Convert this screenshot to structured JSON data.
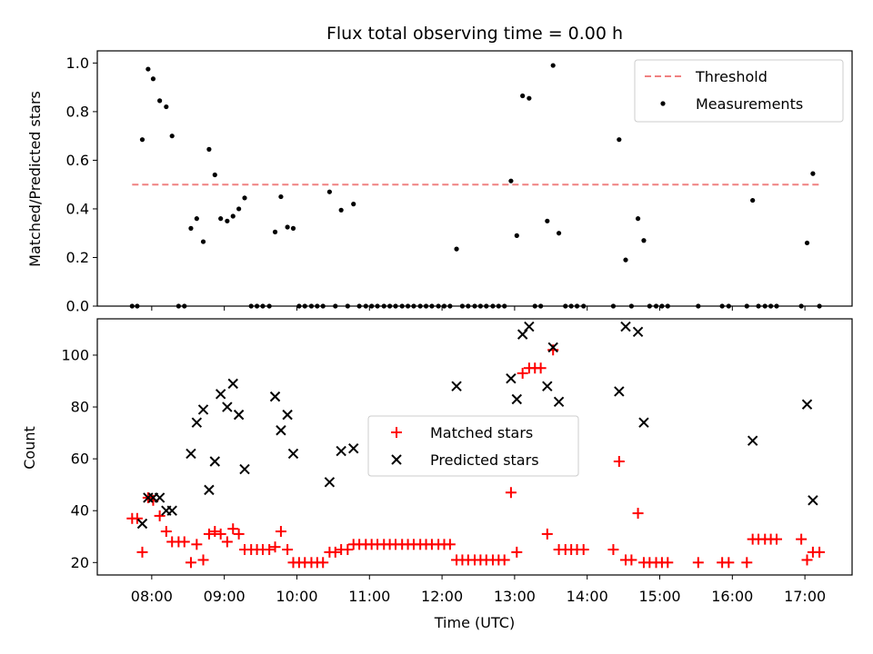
{
  "title": "Flux total observing time = 0.00 h",
  "colors": {
    "threshold": "#f08080",
    "measurement": "#000000",
    "matched": "#ff0000",
    "predicted": "#000000"
  },
  "chart_data": [
    {
      "type": "scatter",
      "xlabel": "",
      "ylabel": "Matched/Predicted stars",
      "ylim": [
        0,
        1.05
      ],
      "yticks": [
        0.0,
        0.2,
        0.4,
        0.6,
        0.8,
        1.0
      ],
      "ytick_labels": [
        "0.0",
        "0.2",
        "0.4",
        "0.6",
        "0.8",
        "1.0"
      ],
      "legend_position": "upper right",
      "threshold": {
        "name": "Threshold",
        "value": 0.5,
        "x_start": 7.73,
        "x_end": 17.22
      },
      "series": [
        {
          "name": "Measurements",
          "points": [
            [
              7.73,
              0.0
            ],
            [
              7.8,
              0.0
            ],
            [
              7.87,
              0.685
            ],
            [
              7.95,
              0.975
            ],
            [
              8.02,
              0.935
            ],
            [
              8.11,
              0.845
            ],
            [
              8.2,
              0.82
            ],
            [
              8.28,
              0.7
            ],
            [
              8.37,
              0.0
            ],
            [
              8.45,
              0.0
            ],
            [
              8.54,
              0.32
            ],
            [
              8.62,
              0.36
            ],
            [
              8.71,
              0.265
            ],
            [
              8.79,
              0.645
            ],
            [
              8.87,
              0.54
            ],
            [
              8.95,
              0.36
            ],
            [
              9.04,
              0.35
            ],
            [
              9.12,
              0.37
            ],
            [
              9.2,
              0.4
            ],
            [
              9.28,
              0.445
            ],
            [
              9.37,
              0.0
            ],
            [
              9.45,
              0.0
            ],
            [
              9.53,
              0.0
            ],
            [
              9.62,
              0.0
            ],
            [
              9.7,
              0.305
            ],
            [
              9.78,
              0.45
            ],
            [
              9.87,
              0.325
            ],
            [
              9.95,
              0.32
            ],
            [
              10.03,
              0.0
            ],
            [
              10.11,
              0.0
            ],
            [
              10.2,
              0.0
            ],
            [
              10.28,
              0.0
            ],
            [
              10.36,
              0.0
            ],
            [
              10.45,
              0.47
            ],
            [
              10.53,
              0.0
            ],
            [
              10.61,
              0.395
            ],
            [
              10.7,
              0.0
            ],
            [
              10.78,
              0.42
            ],
            [
              10.86,
              0.0
            ],
            [
              10.95,
              0.0
            ],
            [
              11.03,
              0.0
            ],
            [
              11.11,
              0.0
            ],
            [
              11.2,
              0.0
            ],
            [
              11.28,
              0.0
            ],
            [
              11.36,
              0.0
            ],
            [
              11.45,
              0.0
            ],
            [
              11.53,
              0.0
            ],
            [
              11.61,
              0.0
            ],
            [
              11.7,
              0.0
            ],
            [
              11.78,
              0.0
            ],
            [
              11.86,
              0.0
            ],
            [
              11.95,
              0.0
            ],
            [
              12.03,
              0.0
            ],
            [
              12.11,
              0.0
            ],
            [
              12.2,
              0.235
            ],
            [
              12.28,
              0.0
            ],
            [
              12.36,
              0.0
            ],
            [
              12.45,
              0.0
            ],
            [
              12.53,
              0.0
            ],
            [
              12.61,
              0.0
            ],
            [
              12.7,
              0.0
            ],
            [
              12.78,
              0.0
            ],
            [
              12.86,
              0.0
            ],
            [
              12.95,
              0.515
            ],
            [
              13.03,
              0.29
            ],
            [
              13.11,
              0.865
            ],
            [
              13.2,
              0.855
            ],
            [
              13.28,
              0.0
            ],
            [
              13.36,
              0.0
            ],
            [
              13.45,
              0.35
            ],
            [
              13.53,
              0.99
            ],
            [
              13.61,
              0.3
            ],
            [
              13.7,
              0.0
            ],
            [
              13.78,
              0.0
            ],
            [
              13.86,
              0.0
            ],
            [
              13.95,
              0.0
            ],
            [
              14.36,
              0.0
            ],
            [
              14.44,
              0.685
            ],
            [
              14.53,
              0.19
            ],
            [
              14.61,
              0.0
            ],
            [
              14.7,
              0.36
            ],
            [
              14.78,
              0.27
            ],
            [
              14.86,
              0.0
            ],
            [
              14.95,
              0.0
            ],
            [
              15.03,
              0.0
            ],
            [
              15.11,
              0.0
            ],
            [
              15.53,
              0.0
            ],
            [
              15.86,
              0.0
            ],
            [
              15.95,
              0.0
            ],
            [
              16.2,
              0.0
            ],
            [
              16.28,
              0.435
            ],
            [
              16.36,
              0.0
            ],
            [
              16.45,
              0.0
            ],
            [
              16.53,
              0.0
            ],
            [
              16.61,
              0.0
            ],
            [
              16.95,
              0.0
            ],
            [
              17.03,
              0.26
            ],
            [
              17.11,
              0.545
            ],
            [
              17.2,
              0.0
            ]
          ]
        }
      ]
    },
    {
      "type": "scatter",
      "xlabel": "Time (UTC)",
      "ylabel": "Count",
      "xlim": [
        7.25,
        17.65
      ],
      "xticks": [
        8,
        9,
        10,
        11,
        12,
        13,
        14,
        15,
        16,
        17
      ],
      "xtick_labels": [
        "08:00",
        "09:00",
        "10:00",
        "11:00",
        "12:00",
        "13:00",
        "14:00",
        "15:00",
        "16:00",
        "17:00"
      ],
      "ylim": [
        15.2,
        114.0
      ],
      "yticks": [
        20,
        40,
        60,
        80,
        100
      ],
      "ytick_labels": [
        "20",
        "40",
        "60",
        "80",
        "100"
      ],
      "legend_position": "center",
      "series": [
        {
          "name": "Matched stars",
          "marker": "+",
          "points": [
            [
              7.73,
              37
            ],
            [
              7.8,
              37
            ],
            [
              7.87,
              24
            ],
            [
              7.95,
              45
            ],
            [
              8.02,
              44
            ],
            [
              8.11,
              38
            ],
            [
              8.2,
              32
            ],
            [
              8.28,
              28
            ],
            [
              8.37,
              28
            ],
            [
              8.45,
              28
            ],
            [
              8.54,
              20
            ],
            [
              8.62,
              27
            ],
            [
              8.71,
              21
            ],
            [
              8.79,
              31
            ],
            [
              8.87,
              32
            ],
            [
              8.95,
              31
            ],
            [
              9.04,
              28
            ],
            [
              9.12,
              33
            ],
            [
              9.2,
              31
            ],
            [
              9.28,
              25
            ],
            [
              9.37,
              25
            ],
            [
              9.45,
              25
            ],
            [
              9.53,
              25
            ],
            [
              9.62,
              25
            ],
            [
              9.7,
              26
            ],
            [
              9.78,
              32
            ],
            [
              9.87,
              25
            ],
            [
              9.95,
              20
            ],
            [
              10.03,
              20
            ],
            [
              10.11,
              20
            ],
            [
              10.2,
              20
            ],
            [
              10.28,
              20
            ],
            [
              10.36,
              20
            ],
            [
              10.45,
              24
            ],
            [
              10.53,
              24
            ],
            [
              10.61,
              25
            ],
            [
              10.7,
              25
            ],
            [
              10.78,
              27
            ],
            [
              10.86,
              27
            ],
            [
              10.95,
              27
            ],
            [
              11.03,
              27
            ],
            [
              11.11,
              27
            ],
            [
              11.2,
              27
            ],
            [
              11.28,
              27
            ],
            [
              11.36,
              27
            ],
            [
              11.45,
              27
            ],
            [
              11.53,
              27
            ],
            [
              11.61,
              27
            ],
            [
              11.7,
              27
            ],
            [
              11.78,
              27
            ],
            [
              11.86,
              27
            ],
            [
              11.95,
              27
            ],
            [
              12.03,
              27
            ],
            [
              12.11,
              27
            ],
            [
              12.2,
              21
            ],
            [
              12.28,
              21
            ],
            [
              12.36,
              21
            ],
            [
              12.45,
              21
            ],
            [
              12.53,
              21
            ],
            [
              12.61,
              21
            ],
            [
              12.7,
              21
            ],
            [
              12.78,
              21
            ],
            [
              12.86,
              21
            ],
            [
              12.95,
              47
            ],
            [
              13.03,
              24
            ],
            [
              13.11,
              93
            ],
            [
              13.2,
              95
            ],
            [
              13.28,
              95
            ],
            [
              13.36,
              95
            ],
            [
              13.45,
              31
            ],
            [
              13.53,
              102
            ],
            [
              13.61,
              25
            ],
            [
              13.7,
              25
            ],
            [
              13.78,
              25
            ],
            [
              13.86,
              25
            ],
            [
              13.95,
              25
            ],
            [
              14.36,
              25
            ],
            [
              14.44,
              59
            ],
            [
              14.53,
              21
            ],
            [
              14.61,
              21
            ],
            [
              14.7,
              39
            ],
            [
              14.78,
              20
            ],
            [
              14.86,
              20
            ],
            [
              14.95,
              20
            ],
            [
              15.03,
              20
            ],
            [
              15.11,
              20
            ],
            [
              15.53,
              20
            ],
            [
              15.86,
              20
            ],
            [
              15.95,
              20
            ],
            [
              16.2,
              20
            ],
            [
              16.28,
              29
            ],
            [
              16.36,
              29
            ],
            [
              16.45,
              29
            ],
            [
              16.53,
              29
            ],
            [
              16.61,
              29
            ],
            [
              16.95,
              29
            ],
            [
              17.03,
              21
            ],
            [
              17.11,
              24
            ],
            [
              17.2,
              24
            ]
          ]
        },
        {
          "name": "Predicted stars",
          "marker": "x",
          "points": [
            [
              7.87,
              35
            ],
            [
              7.95,
              45
            ],
            [
              8.02,
              45
            ],
            [
              8.11,
              45
            ],
            [
              8.2,
              40
            ],
            [
              8.28,
              40
            ],
            [
              8.54,
              62
            ],
            [
              8.62,
              74
            ],
            [
              8.71,
              79
            ],
            [
              8.79,
              48
            ],
            [
              8.87,
              59
            ],
            [
              8.95,
              85
            ],
            [
              9.04,
              80
            ],
            [
              9.12,
              89
            ],
            [
              9.2,
              77
            ],
            [
              9.28,
              56
            ],
            [
              9.7,
              84
            ],
            [
              9.78,
              71
            ],
            [
              9.87,
              77
            ],
            [
              9.95,
              62
            ],
            [
              10.45,
              51
            ],
            [
              10.61,
              63
            ],
            [
              10.78,
              64
            ],
            [
              12.2,
              88
            ],
            [
              12.95,
              91
            ],
            [
              13.03,
              83
            ],
            [
              13.11,
              108
            ],
            [
              13.2,
              111
            ],
            [
              13.45,
              88
            ],
            [
              13.53,
              103
            ],
            [
              13.61,
              82
            ],
            [
              14.44,
              86
            ],
            [
              14.53,
              111
            ],
            [
              14.7,
              109
            ],
            [
              14.78,
              74
            ],
            [
              16.28,
              67
            ],
            [
              17.03,
              81
            ],
            [
              17.11,
              44
            ]
          ]
        }
      ]
    }
  ]
}
